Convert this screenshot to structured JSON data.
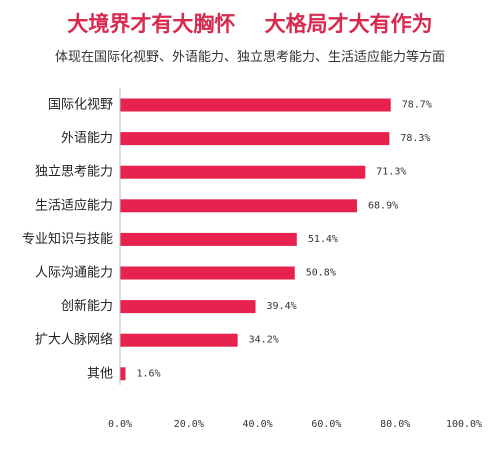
{
  "chart_data": {
    "type": "bar",
    "orientation": "horizontal",
    "title": "大境界才有大胸怀    大格局才大有作为",
    "subtitle": "体现在国际化视野、外语能力、独立思考能力、生活适应能力等方面",
    "categories": [
      "国际化视野",
      "外语能力",
      "独立思考能力",
      "生活适应能力",
      "专业知识与技能",
      "人际沟通能力",
      "创新能力",
      "扩大人脉网络",
      "其他"
    ],
    "values": [
      78.7,
      78.3,
      71.3,
      68.9,
      51.4,
      50.8,
      39.4,
      34.2,
      1.6
    ],
    "value_labels": [
      "78.7%",
      "78.3%",
      "71.3%",
      "68.9%",
      "51.4%",
      "50.8%",
      "39.4%",
      "34.2%",
      "1.6%"
    ],
    "xlim": [
      0,
      100
    ],
    "xticks": [
      0,
      20,
      40,
      60,
      80,
      100
    ],
    "xtick_labels": [
      "0.0%",
      "20.0%",
      "40.0%",
      "60.0%",
      "80.0%",
      "100.0%"
    ],
    "grid": false,
    "legend": "none",
    "colors": {
      "bar": "#e8224e",
      "title": "#d72a4e",
      "axis": "#bbbbbb"
    }
  }
}
